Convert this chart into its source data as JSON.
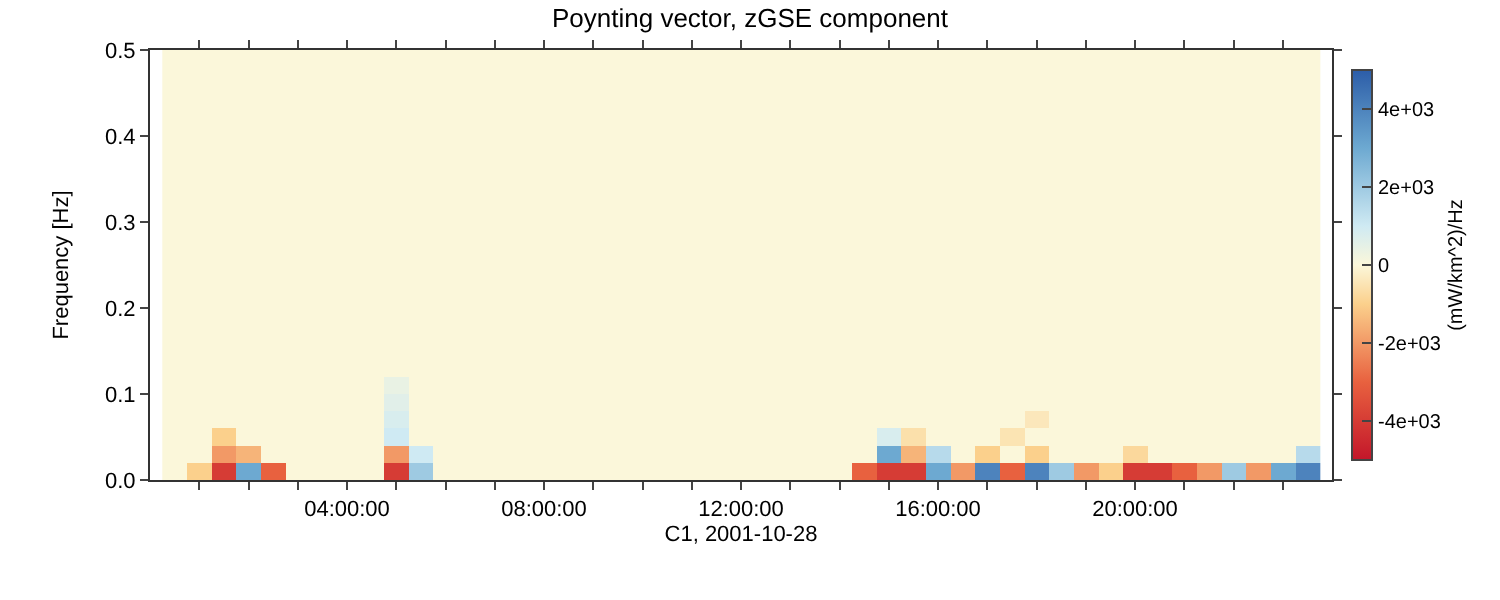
{
  "chart_data": {
    "type": "heatmap",
    "title": "Poynting vector, zGSE component",
    "xlabel": "C1, 2001-10-28",
    "ylabel": "Frequency [Hz]",
    "clabel": "(mW/km^2)/Hz",
    "x": [
      "2001-10-28T00:30",
      "2001-10-28T01:00",
      "2001-10-28T01:30",
      "2001-10-28T02:00",
      "2001-10-28T02:30",
      "2001-10-28T03:00",
      "2001-10-28T03:30",
      "2001-10-28T04:00",
      "2001-10-28T04:30",
      "2001-10-28T05:00",
      "2001-10-28T05:30",
      "2001-10-28T06:00",
      "2001-10-28T06:30",
      "2001-10-28T07:00",
      "2001-10-28T07:30",
      "2001-10-28T08:00",
      "2001-10-28T08:30",
      "2001-10-28T09:00",
      "2001-10-28T09:30",
      "2001-10-28T10:00",
      "2001-10-28T10:30",
      "2001-10-28T11:00",
      "2001-10-28T11:30",
      "2001-10-28T12:00",
      "2001-10-28T12:30",
      "2001-10-28T13:00",
      "2001-10-28T13:30",
      "2001-10-28T14:00",
      "2001-10-28T14:30",
      "2001-10-28T15:00",
      "2001-10-28T15:30",
      "2001-10-28T16:00",
      "2001-10-28T16:30",
      "2001-10-28T17:00",
      "2001-10-28T17:30",
      "2001-10-28T18:00",
      "2001-10-28T18:30",
      "2001-10-28T19:00",
      "2001-10-28T19:30",
      "2001-10-28T20:00",
      "2001-10-28T20:30",
      "2001-10-28T21:00",
      "2001-10-28T21:30",
      "2001-10-28T22:00",
      "2001-10-28T22:30",
      "2001-10-28T23:00",
      "2001-10-28T23:30"
    ],
    "y": [
      0.49,
      0.47,
      0.45,
      0.43,
      0.41,
      0.39,
      0.37,
      0.35,
      0.33,
      0.31,
      0.29,
      0.27,
      0.25,
      0.23,
      0.21,
      0.19,
      0.17,
      0.15,
      0.13,
      0.11,
      0.09,
      0.07,
      0.05,
      0.03,
      0.01
    ],
    "cells": [
      [
        0,
        0,
        0,
        0,
        0,
        0,
        0,
        0,
        0,
        0,
        0,
        0,
        0,
        0,
        0,
        0,
        0,
        0,
        0,
        0,
        0,
        0,
        0,
        0,
        0,
        0,
        0,
        0,
        0,
        0,
        0,
        0,
        0,
        0,
        0,
        0,
        0,
        0,
        0,
        0,
        0,
        0,
        0,
        0,
        0,
        0,
        0
      ],
      [
        0,
        0,
        0,
        0,
        0,
        0,
        0,
        0,
        0,
        0,
        0,
        0,
        0,
        0,
        0,
        0,
        0,
        0,
        0,
        0,
        0,
        0,
        0,
        0,
        0,
        0,
        0,
        0,
        0,
        0,
        0,
        0,
        0,
        0,
        0,
        0,
        0,
        0,
        0,
        0,
        0,
        0,
        0,
        0,
        0,
        0,
        0
      ],
      [
        0,
        0,
        0,
        0,
        0,
        0,
        0,
        0,
        0,
        0,
        0,
        0,
        0,
        0,
        0,
        0,
        0,
        0,
        0,
        0,
        0,
        0,
        0,
        0,
        0,
        0,
        0,
        0,
        0,
        0,
        0,
        0,
        0,
        0,
        0,
        0,
        0,
        0,
        0,
        0,
        0,
        0,
        0,
        0,
        0,
        0,
        0
      ],
      [
        0,
        0,
        0,
        0,
        0,
        0,
        0,
        0,
        0,
        0,
        0,
        0,
        0,
        0,
        0,
        0,
        0,
        0,
        0,
        0,
        0,
        0,
        0,
        0,
        0,
        0,
        0,
        0,
        0,
        0,
        0,
        0,
        0,
        0,
        0,
        0,
        0,
        0,
        0,
        0,
        0,
        0,
        0,
        0,
        0,
        0,
        0
      ],
      [
        0,
        0,
        0,
        0,
        0,
        0,
        0,
        0,
        0,
        0,
        0,
        0,
        0,
        0,
        0,
        0,
        0,
        0,
        0,
        0,
        0,
        0,
        0,
        0,
        0,
        0,
        0,
        0,
        0,
        0,
        0,
        0,
        0,
        0,
        0,
        0,
        0,
        0,
        0,
        0,
        0,
        0,
        0,
        0,
        0,
        0,
        0
      ],
      [
        0,
        0,
        0,
        0,
        0,
        0,
        0,
        0,
        0,
        0,
        0,
        0,
        0,
        0,
        0,
        0,
        0,
        0,
        0,
        0,
        0,
        0,
        0,
        0,
        0,
        0,
        0,
        0,
        0,
        0,
        0,
        0,
        0,
        0,
        0,
        0,
        0,
        0,
        0,
        0,
        0,
        0,
        0,
        0,
        0,
        0,
        0
      ],
      [
        0,
        0,
        0,
        0,
        0,
        0,
        0,
        0,
        0,
        0,
        0,
        0,
        0,
        0,
        0,
        0,
        0,
        0,
        0,
        0,
        0,
        0,
        0,
        0,
        0,
        0,
        0,
        0,
        0,
        0,
        0,
        0,
        0,
        0,
        0,
        0,
        0,
        0,
        0,
        0,
        0,
        0,
        0,
        0,
        0,
        0,
        0
      ],
      [
        0,
        0,
        0,
        0,
        0,
        0,
        0,
        0,
        0,
        0,
        0,
        0,
        0,
        0,
        0,
        0,
        0,
        0,
        0,
        0,
        0,
        0,
        0,
        0,
        0,
        0,
        0,
        0,
        0,
        0,
        0,
        0,
        0,
        0,
        0,
        0,
        0,
        0,
        0,
        0,
        0,
        0,
        0,
        0,
        0,
        0,
        0
      ],
      [
        0,
        0,
        0,
        0,
        0,
        0,
        0,
        0,
        0,
        0,
        0,
        0,
        0,
        0,
        0,
        0,
        0,
        0,
        0,
        0,
        0,
        0,
        0,
        0,
        0,
        0,
        0,
        0,
        0,
        0,
        0,
        0,
        0,
        0,
        0,
        0,
        0,
        0,
        0,
        0,
        0,
        0,
        0,
        0,
        0,
        0,
        0
      ],
      [
        0,
        0,
        0,
        0,
        0,
        0,
        0,
        0,
        0,
        0,
        0,
        0,
        0,
        0,
        0,
        0,
        0,
        0,
        0,
        0,
        0,
        0,
        0,
        0,
        0,
        0,
        0,
        0,
        0,
        0,
        0,
        0,
        0,
        0,
        0,
        0,
        0,
        0,
        0,
        0,
        0,
        0,
        0,
        0,
        0,
        0,
        0
      ],
      [
        0,
        0,
        0,
        0,
        0,
        0,
        0,
        0,
        0,
        0,
        0,
        0,
        0,
        0,
        0,
        0,
        0,
        0,
        0,
        0,
        0,
        0,
        0,
        0,
        0,
        0,
        0,
        0,
        0,
        0,
        0,
        0,
        0,
        0,
        0,
        0,
        0,
        0,
        0,
        0,
        0,
        0,
        0,
        0,
        0,
        0,
        0
      ],
      [
        0,
        0,
        0,
        0,
        0,
        0,
        0,
        0,
        0,
        0,
        0,
        0,
        0,
        0,
        0,
        0,
        0,
        0,
        0,
        0,
        0,
        0,
        0,
        0,
        0,
        0,
        0,
        0,
        0,
        0,
        0,
        0,
        0,
        0,
        0,
        0,
        0,
        0,
        0,
        0,
        0,
        0,
        0,
        0,
        0,
        0,
        0
      ],
      [
        0,
        0,
        0,
        0,
        0,
        0,
        0,
        0,
        0,
        0,
        0,
        0,
        0,
        0,
        0,
        0,
        0,
        0,
        0,
        0,
        0,
        0,
        0,
        0,
        0,
        0,
        0,
        0,
        0,
        0,
        0,
        0,
        0,
        0,
        0,
        0,
        0,
        0,
        0,
        0,
        0,
        0,
        0,
        0,
        0,
        0,
        0
      ],
      [
        0,
        0,
        0,
        0,
        0,
        0,
        0,
        0,
        0,
        0,
        0,
        0,
        0,
        0,
        0,
        0,
        0,
        0,
        0,
        0,
        0,
        0,
        0,
        0,
        0,
        0,
        0,
        0,
        0,
        0,
        0,
        0,
        0,
        0,
        0,
        0,
        0,
        0,
        0,
        0,
        0,
        0,
        0,
        0,
        0,
        0,
        0
      ],
      [
        0,
        0,
        0,
        0,
        0,
        0,
        0,
        0,
        0,
        0,
        0,
        0,
        0,
        0,
        0,
        0,
        0,
        0,
        0,
        0,
        0,
        0,
        0,
        0,
        0,
        0,
        0,
        0,
        0,
        0,
        0,
        0,
        0,
        0,
        0,
        0,
        0,
        0,
        0,
        0,
        0,
        0,
        0,
        0,
        0,
        0,
        0
      ],
      [
        0,
        0,
        0,
        0,
        0,
        0,
        0,
        0,
        0,
        0,
        0,
        0,
        0,
        0,
        0,
        0,
        0,
        0,
        0,
        0,
        0,
        0,
        0,
        0,
        0,
        0,
        0,
        0,
        0,
        0,
        0,
        0,
        0,
        0,
        0,
        0,
        0,
        0,
        0,
        0,
        0,
        0,
        0,
        0,
        0,
        0,
        0
      ],
      [
        0,
        0,
        0,
        0,
        0,
        0,
        0,
        0,
        0,
        0,
        0,
        0,
        0,
        0,
        0,
        0,
        0,
        0,
        0,
        0,
        0,
        0,
        0,
        0,
        0,
        0,
        0,
        0,
        0,
        0,
        0,
        0,
        0,
        0,
        0,
        0,
        0,
        0,
        0,
        0,
        0,
        0,
        0,
        0,
        0,
        0,
        0
      ],
      [
        0,
        0,
        0,
        0,
        0,
        0,
        0,
        0,
        0,
        0,
        0,
        0,
        0,
        0,
        0,
        0,
        0,
        0,
        0,
        0,
        0,
        0,
        0,
        0,
        0,
        0,
        0,
        0,
        0,
        0,
        0,
        0,
        0,
        0,
        0,
        0,
        0,
        0,
        0,
        0,
        0,
        0,
        0,
        0,
        0,
        0,
        0
      ],
      [
        0,
        0,
        0,
        0,
        0,
        0,
        0,
        0,
        0,
        0,
        0,
        0,
        0,
        0,
        0,
        0,
        0,
        0,
        0,
        0,
        0,
        0,
        0,
        0,
        0,
        0,
        0,
        0,
        0,
        0,
        0,
        0,
        0,
        0,
        0,
        0,
        0,
        0,
        0,
        0,
        0,
        0,
        0,
        0,
        0,
        0,
        0
      ],
      [
        0,
        0,
        0,
        0,
        0,
        0,
        0,
        0,
        0,
        400,
        0,
        0,
        0,
        0,
        0,
        0,
        0,
        0,
        0,
        0,
        0,
        0,
        0,
        0,
        0,
        0,
        0,
        0,
        0,
        0,
        0,
        0,
        0,
        0,
        0,
        0,
        0,
        0,
        0,
        0,
        0,
        0,
        0,
        0,
        0,
        0,
        0
      ],
      [
        0,
        0,
        0,
        0,
        0,
        0,
        0,
        0,
        0,
        600,
        0,
        0,
        0,
        0,
        0,
        0,
        0,
        0,
        0,
        0,
        0,
        0,
        0,
        0,
        0,
        0,
        0,
        0,
        0,
        0,
        0,
        0,
        0,
        0,
        0,
        0,
        0,
        0,
        0,
        0,
        0,
        0,
        0,
        0,
        0,
        0,
        0
      ],
      [
        0,
        0,
        0,
        0,
        0,
        0,
        0,
        0,
        0,
        800,
        0,
        0,
        0,
        0,
        0,
        0,
        0,
        0,
        0,
        0,
        0,
        0,
        0,
        0,
        0,
        0,
        0,
        0,
        0,
        0,
        0,
        0,
        0,
        0,
        0,
        -400,
        0,
        0,
        0,
        0,
        0,
        0,
        0,
        0,
        0,
        0,
        0
      ],
      [
        0,
        0,
        -1000,
        0,
        0,
        0,
        0,
        0,
        0,
        1000,
        0,
        0,
        0,
        0,
        0,
        0,
        0,
        0,
        0,
        0,
        0,
        0,
        0,
        0,
        0,
        0,
        0,
        0,
        0,
        800,
        -600,
        0,
        0,
        0,
        -500,
        0,
        0,
        0,
        0,
        0,
        0,
        0,
        0,
        0,
        0,
        0,
        0
      ],
      [
        0,
        0,
        -2000,
        -1500,
        0,
        0,
        0,
        0,
        0,
        -2000,
        1000,
        0,
        0,
        0,
        0,
        0,
        0,
        0,
        0,
        0,
        0,
        0,
        0,
        0,
        0,
        0,
        0,
        0,
        0,
        3000,
        -1500,
        1500,
        0,
        -1000,
        0,
        -1000,
        0,
        0,
        0,
        -800,
        0,
        0,
        0,
        0,
        0,
        0,
        1500
      ],
      [
        0,
        -1000,
        -4000,
        3000,
        -3000,
        0,
        0,
        0,
        0,
        -4000,
        2000,
        0,
        0,
        0,
        0,
        0,
        0,
        0,
        0,
        0,
        0,
        0,
        0,
        0,
        0,
        0,
        0,
        0,
        -3000,
        -4000,
        -4000,
        3000,
        -2000,
        4000,
        -3000,
        4000,
        2000,
        -2000,
        -1000,
        -4000,
        -4000,
        -3000,
        -2000,
        2000,
        -2000,
        3000,
        4000
      ]
    ],
    "xlim": [
      "2001-10-28T00:00",
      "2001-10-29T00:00"
    ],
    "xticks": [
      {
        "value": "2001-10-28T01:00",
        "label": null
      },
      {
        "value": "2001-10-28T02:00",
        "label": null
      },
      {
        "value": "2001-10-28T03:00",
        "label": null
      },
      {
        "value": "2001-10-28T04:00",
        "label": "04:00:00"
      },
      {
        "value": "2001-10-28T05:00",
        "label": null
      },
      {
        "value": "2001-10-28T06:00",
        "label": null
      },
      {
        "value": "2001-10-28T07:00",
        "label": null
      },
      {
        "value": "2001-10-28T08:00",
        "label": "08:00:00"
      },
      {
        "value": "2001-10-28T09:00",
        "label": null
      },
      {
        "value": "2001-10-28T10:00",
        "label": null
      },
      {
        "value": "2001-10-28T11:00",
        "label": null
      },
      {
        "value": "2001-10-28T12:00",
        "label": "12:00:00"
      },
      {
        "value": "2001-10-28T13:00",
        "label": null
      },
      {
        "value": "2001-10-28T14:00",
        "label": null
      },
      {
        "value": "2001-10-28T15:00",
        "label": null
      },
      {
        "value": "2001-10-28T16:00",
        "label": "16:00:00"
      },
      {
        "value": "2001-10-28T17:00",
        "label": null
      },
      {
        "value": "2001-10-28T18:00",
        "label": null
      },
      {
        "value": "2001-10-28T19:00",
        "label": null
      },
      {
        "value": "2001-10-28T20:00",
        "label": "20:00:00"
      },
      {
        "value": "2001-10-28T21:00",
        "label": null
      },
      {
        "value": "2001-10-28T22:00",
        "label": null
      },
      {
        "value": "2001-10-28T23:00",
        "label": null
      }
    ],
    "ylim": [
      0,
      0.5
    ],
    "yticks": [
      {
        "value": 0,
        "label": "0.0"
      },
      {
        "value": 0.1,
        "label": "0.1"
      },
      {
        "value": 0.2,
        "label": "0.2"
      },
      {
        "value": 0.3,
        "label": "0.3"
      },
      {
        "value": 0.4,
        "label": "0.4"
      },
      {
        "value": 0.5,
        "label": "0.5"
      }
    ],
    "clim": [
      -5000,
      5000
    ],
    "cticks": [
      {
        "value": -4000,
        "label": "-4e+03"
      },
      {
        "value": -2000,
        "label": "-2e+03"
      },
      0,
      {
        "value": 2000,
        "label": "2e+03"
      },
      {
        "value": 4000,
        "label": "4e+03"
      }
    ]
  }
}
